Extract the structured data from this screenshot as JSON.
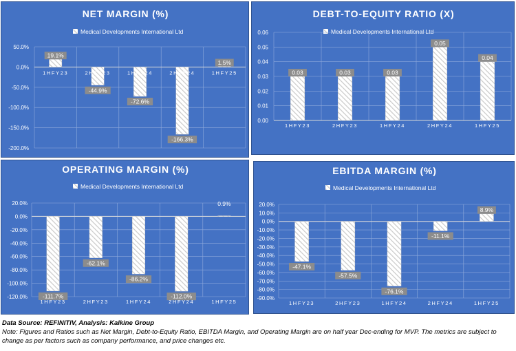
{
  "colors": {
    "panel_bg": "#4472c4",
    "bar_stripe": "#c9c9c9",
    "grid": "#8faadc",
    "label_bg": "#8c8c8c",
    "text": "#ffffff"
  },
  "chart_data": [
    {
      "type": "bar",
      "title": "NET MARGIN (%)",
      "legend": "Medical Developments International Ltd",
      "categories": [
        "1HFY23",
        "2HFY23",
        "1HFY24",
        "2HFY24",
        "1HFY25"
      ],
      "values": [
        19.1,
        -44.9,
        -72.6,
        -166.3,
        1.5
      ],
      "data_labels": [
        "19.1%",
        "-44.9%",
        "-72.6%",
        "-166.3%",
        "1.5%"
      ],
      "ylim": [
        -200,
        50
      ],
      "yticks": [
        50,
        0,
        -50,
        -100,
        -150,
        -200
      ],
      "ytick_labels": [
        "50.0%",
        "0.0%",
        "-50.0%",
        "-100.0%",
        "-150.0%",
        "-200.0%"
      ]
    },
    {
      "type": "bar",
      "title": "DEBT-TO-EQUITY RATIO  (X)",
      "legend": "Medical Developments International Ltd",
      "categories": [
        "1HFY23",
        "2HFY23",
        "1HFY24",
        "2HFY24",
        "1HFY25"
      ],
      "values": [
        0.03,
        0.03,
        0.03,
        0.05,
        0.04
      ],
      "data_labels": [
        "0.03",
        "0.03",
        "0.03",
        "0.05",
        "0.04"
      ],
      "ylim": [
        0,
        0.06
      ],
      "yticks": [
        0.06,
        0.05,
        0.04,
        0.03,
        0.02,
        0.01,
        0
      ],
      "ytick_labels": [
        "0.06",
        "0.05",
        "0.04",
        "0.03",
        "0.02",
        "0.01",
        "0.00"
      ]
    },
    {
      "type": "bar",
      "title": "OPERATING MARGIN (%)",
      "legend": "Medical Developments International Ltd",
      "categories": [
        "1HFY23",
        "2HFY23",
        "1HFY24",
        "2HFY24",
        "1HFY25"
      ],
      "values": [
        -111.7,
        -62.1,
        -86.2,
        -112.0,
        0.9
      ],
      "data_labels": [
        "-111.7%",
        "-62.1%",
        "-86.2%",
        "-112.0%",
        "0.9%"
      ],
      "ylim": [
        -120,
        20
      ],
      "yticks": [
        20,
        0,
        -20,
        -40,
        -60,
        -80,
        -100,
        -120
      ],
      "ytick_labels": [
        "20.0%",
        "0.0%",
        "-20.0%",
        "-40.0%",
        "-60.0%",
        "-80.0%",
        "-100.0%",
        "-120.0%"
      ]
    },
    {
      "type": "bar",
      "title": "EBITDA MARGIN (%)",
      "legend": "Medical Developments International Ltd",
      "categories": [
        "1HFY23",
        "2HFY23",
        "1HFY24",
        "2HFY24",
        "1HFY25"
      ],
      "values": [
        -47.1,
        -57.5,
        -76.1,
        -11.1,
        8.9
      ],
      "data_labels": [
        "-47.1%",
        "-57.5%",
        "-76.1%",
        "-11.1%",
        "8.9%"
      ],
      "ylim": [
        -90,
        20
      ],
      "yticks": [
        20,
        10,
        0,
        -10,
        -20,
        -30,
        -40,
        -50,
        -60,
        -70,
        -80,
        -90
      ],
      "ytick_labels": [
        "20.0%",
        "10.0%",
        "0.0%",
        "-10.0%",
        "-20.0%",
        "-30.0%",
        "-40.0%",
        "-50.0%",
        "-60.0%",
        "-70.0%",
        "-80.0%",
        "-90.0%"
      ]
    }
  ],
  "footer": {
    "source": "Data Source: REFINITIV, Analysis: Kalkine Group",
    "note": "Note: Figures and Ratios such as  Net Margin, Debt-to-Equity Ratio, EBITDA Margin, and Operating Margin are on half year Dec-ending for MVP. The metrics are subject to change as per factors such as company performance, and price changes etc."
  }
}
